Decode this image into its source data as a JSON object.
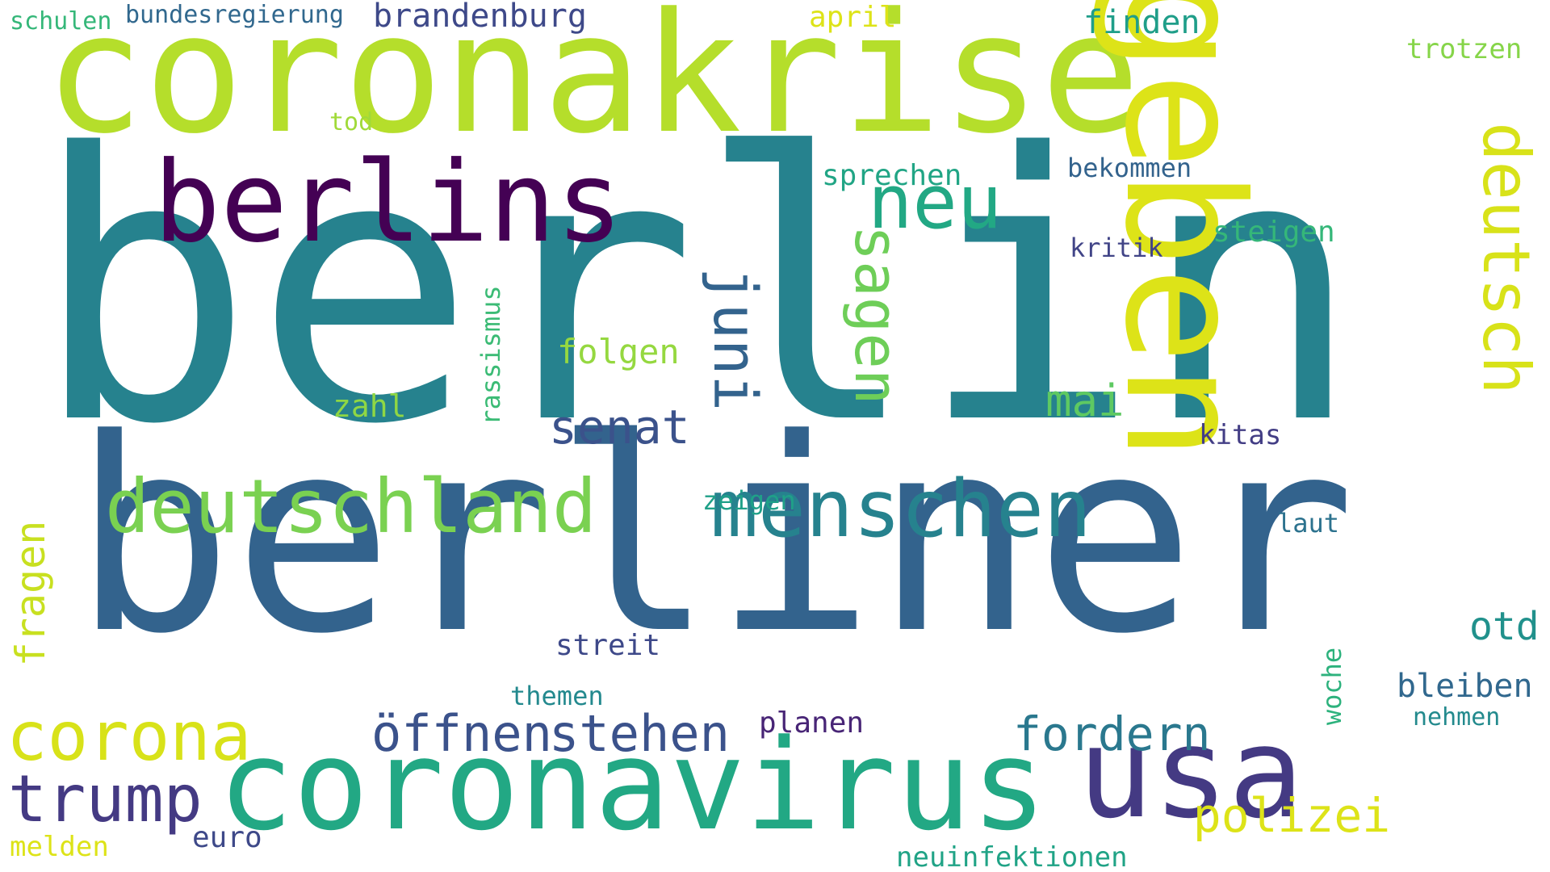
{
  "words": [
    {
      "text": "berlin",
      "color": "#26828e"
    },
    {
      "text": "berliner",
      "color": "#33638d"
    },
    {
      "text": "coronakrise",
      "color": "#b5de2b"
    },
    {
      "text": "geben",
      "color": "#dde318"
    },
    {
      "text": "berlins",
      "color": "#440154"
    },
    {
      "text": "coronavirus",
      "color": "#22a884"
    },
    {
      "text": "deutschland",
      "color": "#7ad151"
    },
    {
      "text": "menschen",
      "color": "#26828e"
    },
    {
      "text": "usa",
      "color": "#443a83"
    },
    {
      "text": "deutsch",
      "color": "#d8e219"
    },
    {
      "text": "neu",
      "color": "#22a884"
    },
    {
      "text": "sagen",
      "color": "#6ece58"
    },
    {
      "text": "juni",
      "color": "#33638d"
    },
    {
      "text": "corona",
      "color": "#d8e219"
    },
    {
      "text": "trump",
      "color": "#443a83"
    },
    {
      "text": "öffnen",
      "color": "#3b528b"
    },
    {
      "text": "stehen",
      "color": "#3b528b"
    },
    {
      "text": "fordern",
      "color": "#2a788e"
    },
    {
      "text": "senat",
      "color": "#3b528b"
    },
    {
      "text": "polizei",
      "color": "#dde318"
    },
    {
      "text": "mai",
      "color": "#5ec962"
    },
    {
      "text": "otd",
      "color": "#21918c"
    },
    {
      "text": "bleiben",
      "color": "#31688e"
    },
    {
      "text": "brandenburg",
      "color": "#3e4989"
    },
    {
      "text": "fragen",
      "color": "#c8e020"
    },
    {
      "text": "folgen",
      "color": "#95d840"
    },
    {
      "text": "finden",
      "color": "#1f9e89"
    },
    {
      "text": "trotzen",
      "color": "#86d549"
    },
    {
      "text": "april",
      "color": "#dde318"
    },
    {
      "text": "bundesregierung",
      "color": "#31688e"
    },
    {
      "text": "schulen",
      "color": "#35b779"
    },
    {
      "text": "sprechen",
      "color": "#21a585"
    },
    {
      "text": "bekommen",
      "color": "#33638d"
    },
    {
      "text": "steigen",
      "color": "#35b779"
    },
    {
      "text": "kritik",
      "color": "#414487"
    },
    {
      "text": "rassismus",
      "color": "#3bbb75"
    },
    {
      "text": "zahl",
      "color": "#8fd744"
    },
    {
      "text": "kitas",
      "color": "#433e85"
    },
    {
      "text": "tod",
      "color": "#a0da39"
    },
    {
      "text": "zeigen",
      "color": "#1fa088"
    },
    {
      "text": "laut",
      "color": "#2c728e"
    },
    {
      "text": "streit",
      "color": "#3e4989"
    },
    {
      "text": "woche",
      "color": "#2db27d"
    },
    {
      "text": "themen",
      "color": "#23898e"
    },
    {
      "text": "planen",
      "color": "#482576"
    },
    {
      "text": "nehmen",
      "color": "#238a8d"
    },
    {
      "text": "euro",
      "color": "#3e4989"
    },
    {
      "text": "melden",
      "color": "#dde318"
    },
    {
      "text": "neuinfektionen",
      "color": "#20a386"
    }
  ]
}
